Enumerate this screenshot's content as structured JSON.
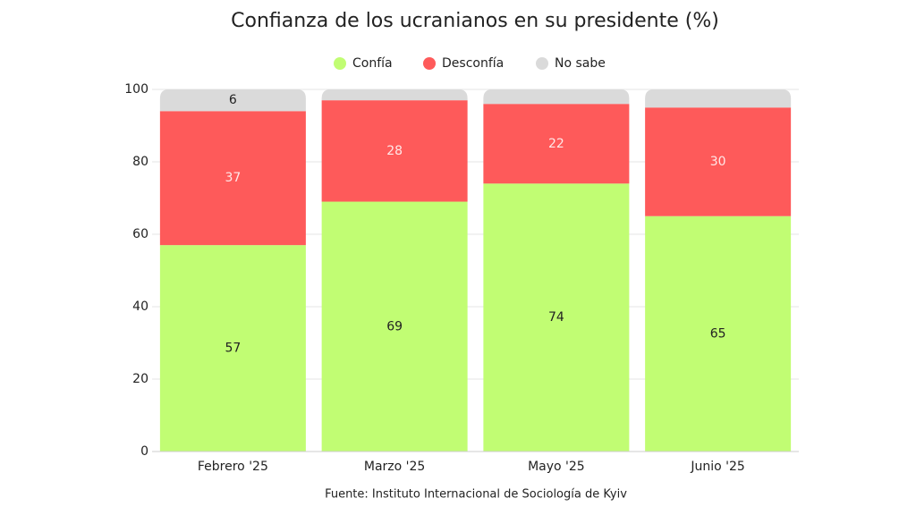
{
  "chart_data": {
    "type": "stacked_bar",
    "title": "Confianza de los ucranianos en su presidente (%)",
    "source": "Fuente: Instituto Internacional de Sociología de Kyiv",
    "categories": [
      "Febrero '25",
      "Marzo '25",
      "Mayo '25",
      "Junio '25"
    ],
    "series": [
      {
        "name": "Confía",
        "color": "#c1fd73",
        "values": [
          57,
          69,
          74,
          65
        ]
      },
      {
        "name": "Desconfía",
        "color": "#fe5a5a",
        "values": [
          37,
          28,
          22,
          30
        ]
      },
      {
        "name": "No sabe",
        "color": "#dadada",
        "values": [
          6,
          3,
          4,
          5
        ],
        "value_labels": [
          "6",
          null,
          null,
          null
        ]
      }
    ],
    "ylim": [
      0,
      100
    ],
    "yticks": [
      0,
      20,
      40,
      60,
      80,
      100
    ],
    "grid": true,
    "legend": "top"
  }
}
